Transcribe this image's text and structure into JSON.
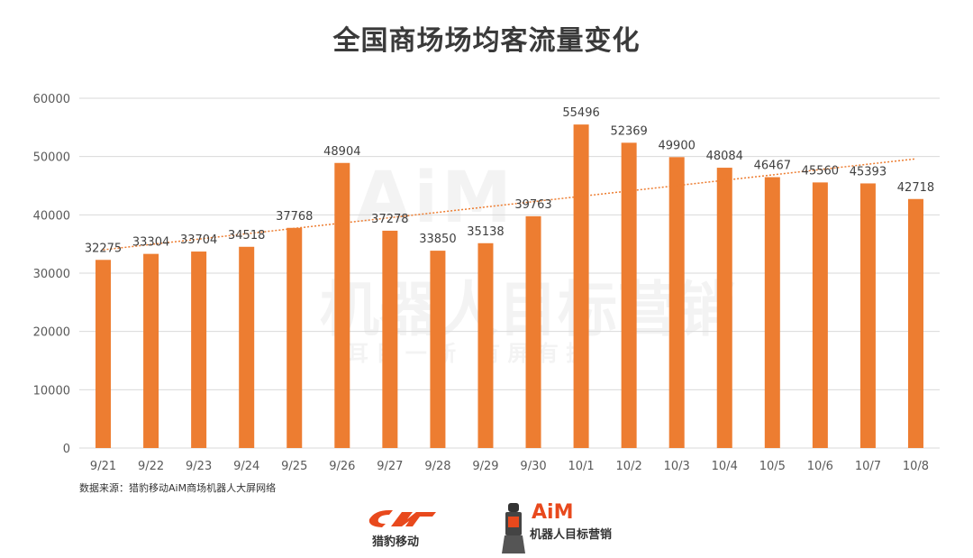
{
  "title": "全国商场场均客流量变化",
  "source": "数据来源：猎豹移动AiM商场机器人大屏网络",
  "logos": {
    "left_text": "猎豹移动",
    "right_brand": "AiM",
    "right_text": "机器人目标营销"
  },
  "watermark": {
    "brand": "AiM",
    "main": "机器人目标营销",
    "sub": "耳 目 一 新   有 屏 有 据"
  },
  "colors": {
    "bar": "#ED7D31",
    "trend": "#ED7D31",
    "grid": "#D9D9D9",
    "logo": "#E8491D"
  },
  "chart_data": {
    "type": "bar",
    "categories": [
      "9/21",
      "9/22",
      "9/23",
      "9/24",
      "9/25",
      "9/26",
      "9/27",
      "9/28",
      "9/29",
      "9/30",
      "10/1",
      "10/2",
      "10/3",
      "10/4",
      "10/5",
      "10/6",
      "10/7",
      "10/8"
    ],
    "values": [
      32275,
      33304,
      33704,
      34518,
      37768,
      48904,
      37278,
      33850,
      35138,
      39763,
      55496,
      52369,
      49900,
      48084,
      46467,
      45560,
      45393,
      42718
    ],
    "ylim": [
      0,
      60000
    ],
    "yticks": [
      "0",
      "10000",
      "20000",
      "30000",
      "40000",
      "50000",
      "60000"
    ],
    "grid": true,
    "trendline": "linear",
    "data_labels": true
  }
}
